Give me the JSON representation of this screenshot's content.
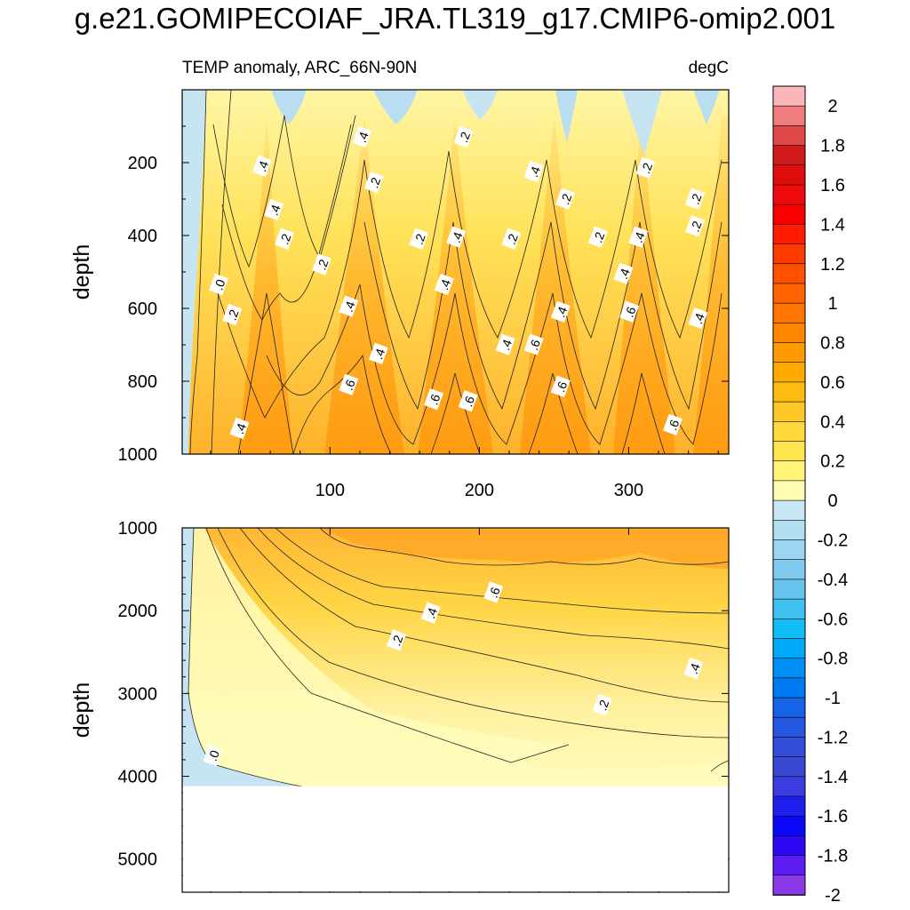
{
  "title": "g.e21.GOMIPECOIAF_JRA.TL319_g17.CMIP6-omip2.001",
  "chart_data": [
    {
      "type": "contour",
      "panel": "upper",
      "subtitle_left": "TEMP anomaly, ARC_66N-90N",
      "subtitle_right": "degC",
      "xlabel": "",
      "ylabel": "depth",
      "xlim": [
        1,
        367
      ],
      "ylim": [
        1000,
        0
      ],
      "x_ticks": [
        100,
        200,
        300
      ],
      "x_tick_labels": [
        "100",
        "200",
        "300"
      ],
      "y_ticks": [
        200,
        400,
        600,
        800,
        1000
      ],
      "y_tick_labels": [
        "200",
        "400",
        "600",
        "800",
        "1000"
      ],
      "contour_labels": [
        {
          "text": ".4",
          "x": 55,
          "y": 210
        },
        {
          "text": ".4",
          "x": 122,
          "y": 130
        },
        {
          "text": ".2",
          "x": 190,
          "y": 130
        },
        {
          "text": ".4",
          "x": 237,
          "y": 225
        },
        {
          "text": ".2",
          "x": 312,
          "y": 215
        },
        {
          "text": ".4",
          "x": 63,
          "y": 330
        },
        {
          "text": ".2",
          "x": 130,
          "y": 255
        },
        {
          "text": ".2",
          "x": 258,
          "y": 300
        },
        {
          "text": ".2",
          "x": 345,
          "y": 300
        },
        {
          "text": ".2",
          "x": 70,
          "y": 410
        },
        {
          "text": ".2",
          "x": 160,
          "y": 410
        },
        {
          "text": ".4",
          "x": 185,
          "y": 405
        },
        {
          "text": ".2",
          "x": 222,
          "y": 410
        },
        {
          "text": ".2",
          "x": 280,
          "y": 405
        },
        {
          "text": ".4",
          "x": 307,
          "y": 405
        },
        {
          "text": ".2",
          "x": 345,
          "y": 375
        },
        {
          "text": ".2",
          "x": 95,
          "y": 480
        },
        {
          "text": ".4",
          "x": 177,
          "y": 535
        },
        {
          "text": ".4",
          "x": 297,
          "y": 505
        },
        {
          "text": ".0",
          "x": 26,
          "y": 535
        },
        {
          "text": ".4",
          "x": 113,
          "y": 595
        },
        {
          "text": ".2",
          "x": 35,
          "y": 618
        },
        {
          "text": ".4",
          "x": 255,
          "y": 610
        },
        {
          "text": ".6",
          "x": 301,
          "y": 610
        },
        {
          "text": ".4",
          "x": 347,
          "y": 628
        },
        {
          "text": ".4",
          "x": 218,
          "y": 700
        },
        {
          "text": ".6",
          "x": 237,
          "y": 700
        },
        {
          "text": ".4",
          "x": 133,
          "y": 725
        },
        {
          "text": ".6",
          "x": 113,
          "y": 810
        },
        {
          "text": ".6",
          "x": 255,
          "y": 815
        },
        {
          "text": ".6",
          "x": 170,
          "y": 850
        },
        {
          "text": ".6",
          "x": 193,
          "y": 855
        },
        {
          "text": ".4",
          "x": 40,
          "y": 930
        },
        {
          "text": ".6",
          "x": 330,
          "y": 920
        }
      ]
    },
    {
      "type": "contour",
      "panel": "lower",
      "xlabel": "",
      "ylabel": "depth",
      "xlim": [
        1,
        367
      ],
      "ylim": [
        1000,
        5400
      ],
      "y_ticks": [
        1000,
        2000,
        3000,
        4000,
        5000
      ],
      "y_tick_labels": [
        "1000",
        "2000",
        "3000",
        "4000",
        "5000"
      ],
      "bottom_depth": 4120,
      "contour_labels": [
        {
          "text": ".6",
          "x": 210,
          "y": 1780
        },
        {
          "text": ".4",
          "x": 168,
          "y": 2030
        },
        {
          "text": ".2",
          "x": 145,
          "y": 2360
        },
        {
          "text": ".4",
          "x": 344,
          "y": 2700
        },
        {
          "text": ".2",
          "x": 283,
          "y": 3140
        },
        {
          "text": ".0",
          "x": 22,
          "y": 3750
        }
      ]
    }
  ],
  "colorbar": {
    "labels": [
      "2",
      "1.8",
      "1.6",
      "1.4",
      "1.2",
      "1",
      "0.8",
      "0.6",
      "0.4",
      "0.2",
      "0",
      "-0.2",
      "-0.4",
      "-0.6",
      "-0.8",
      "-1",
      "-1.2",
      "-1.4",
      "-1.6",
      "-1.8",
      "-2"
    ],
    "colors": [
      "#fbb6b8",
      "#ef7d7f",
      "#e04848",
      "#d01a1a",
      "#e00d0d",
      "#ed0a0a",
      "#fa0000",
      "#ff1d00",
      "#ff3c00",
      "#ff5000",
      "#ff6400",
      "#ff7500",
      "#ff8600",
      "#ff9900",
      "#ffaa00",
      "#ffbb10",
      "#ffc728",
      "#ffd83c",
      "#ffe650",
      "#fff378",
      "#fffbb2",
      "#c9e6f4",
      "#b2def2",
      "#9cd5f0",
      "#82cbee",
      "#66c3ee",
      "#3ec0f0",
      "#12bdf6",
      "#00a8f8",
      "#0090f5",
      "#0078f0",
      "#1564e6",
      "#2456e0",
      "#334ed8",
      "#3a48d3",
      "#3a3cde",
      "#2020ee",
      "#0a0af8",
      "#2c08f4",
      "#5a1cf0",
      "#8a38e8"
    ]
  }
}
